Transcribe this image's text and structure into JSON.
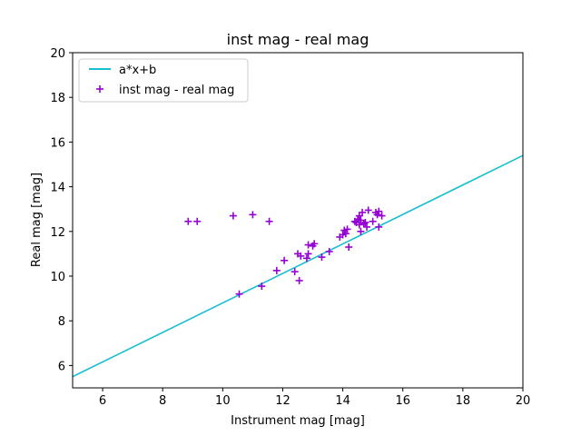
{
  "chart_data": {
    "type": "scatter",
    "title": "inst mag - real mag",
    "xlabel": "Instrument mag [mag]",
    "ylabel": "Real mag [mag]",
    "xlim": [
      5,
      20
    ],
    "ylim": [
      5,
      20
    ],
    "xticks": [
      6,
      8,
      10,
      12,
      14,
      16,
      18,
      20
    ],
    "yticks": [
      6,
      8,
      10,
      12,
      14,
      16,
      18,
      20
    ],
    "grid": false,
    "legend_position": "top-left",
    "fit_line": {
      "name": "a*x+b",
      "color": "#17becf",
      "points": [
        [
          5,
          5.5
        ],
        [
          20,
          15.4
        ]
      ]
    },
    "series": [
      {
        "name": "inst mag - real mag",
        "marker": "+",
        "color": "#9400d3",
        "points": [
          [
            8.85,
            12.45
          ],
          [
            9.15,
            12.45
          ],
          [
            10.35,
            12.7
          ],
          [
            11.0,
            12.75
          ],
          [
            11.55,
            12.45
          ],
          [
            10.55,
            9.2
          ],
          [
            11.3,
            9.55
          ],
          [
            11.8,
            10.25
          ],
          [
            12.05,
            10.7
          ],
          [
            12.4,
            10.2
          ],
          [
            12.5,
            11.0
          ],
          [
            12.55,
            9.8
          ],
          [
            12.6,
            10.9
          ],
          [
            12.8,
            10.8
          ],
          [
            12.85,
            11.0
          ],
          [
            12.85,
            11.4
          ],
          [
            13.0,
            11.35
          ],
          [
            13.05,
            11.45
          ],
          [
            13.3,
            10.85
          ],
          [
            13.55,
            11.1
          ],
          [
            13.9,
            11.75
          ],
          [
            14.0,
            11.85
          ],
          [
            14.05,
            12.05
          ],
          [
            14.1,
            11.9
          ],
          [
            14.15,
            12.1
          ],
          [
            14.2,
            11.3
          ],
          [
            14.4,
            12.45
          ],
          [
            14.45,
            12.4
          ],
          [
            14.5,
            12.55
          ],
          [
            14.55,
            12.3
          ],
          [
            14.55,
            12.7
          ],
          [
            14.6,
            12.5
          ],
          [
            14.6,
            12.0
          ],
          [
            14.65,
            12.85
          ],
          [
            14.7,
            12.35
          ],
          [
            14.75,
            12.4
          ],
          [
            14.8,
            12.2
          ],
          [
            14.85,
            12.95
          ],
          [
            15.0,
            12.45
          ],
          [
            15.1,
            12.85
          ],
          [
            15.15,
            12.75
          ],
          [
            15.2,
            12.9
          ],
          [
            15.2,
            12.2
          ],
          [
            15.3,
            12.7
          ]
        ]
      }
    ]
  }
}
